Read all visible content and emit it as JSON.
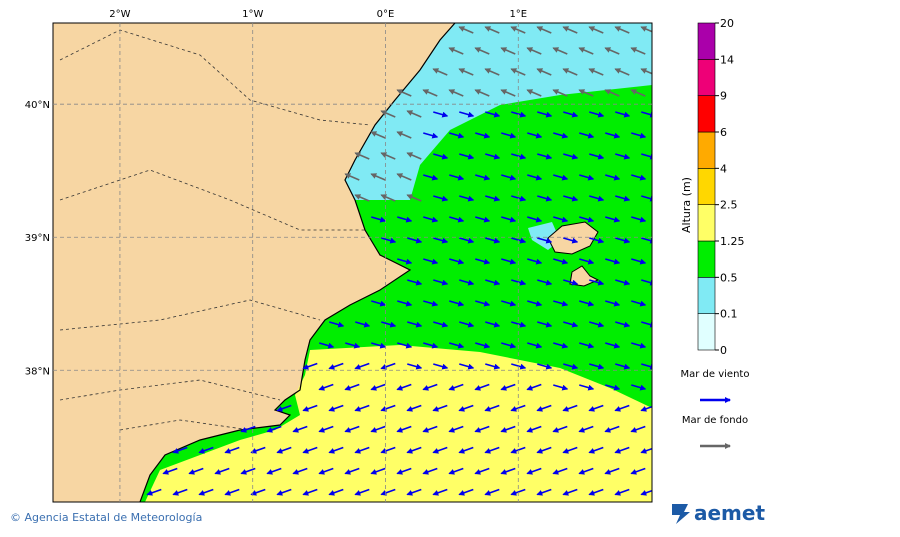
{
  "map": {
    "extent": {
      "lon": [
        -2.504,
        2.007
      ],
      "lat": [
        37.01,
        40.61
      ]
    },
    "lon_ticks": [
      {
        "value": -2,
        "label": "2°W"
      },
      {
        "value": -1,
        "label": "1°W"
      },
      {
        "value": 0,
        "label": "0°E"
      },
      {
        "value": 1,
        "label": "1°E"
      }
    ],
    "lat_ticks": [
      {
        "value": 40,
        "label": "40°N"
      },
      {
        "value": 39,
        "label": "39°N"
      },
      {
        "value": 38,
        "label": "38°N"
      }
    ],
    "colorbar": {
      "title": "Altura (m)",
      "levels": [
        0,
        0.1,
        0.5,
        1.25,
        2.5,
        4,
        6,
        9,
        14,
        20
      ],
      "colors": [
        "#e0ffff",
        "#80eaf4",
        "#00ee00",
        "#ffff66",
        "#ffd700",
        "#ffaa00",
        "#ff0000",
        "#ee0077",
        "#aa00aa"
      ]
    },
    "legend": [
      {
        "label": "Mar de viento",
        "color": "#0000ee"
      },
      {
        "label": "Mar de fondo",
        "color": "#666666"
      }
    ]
  },
  "footer": {
    "credit": "© Agencia Estatal de Meteorología",
    "logo": "aemet"
  }
}
